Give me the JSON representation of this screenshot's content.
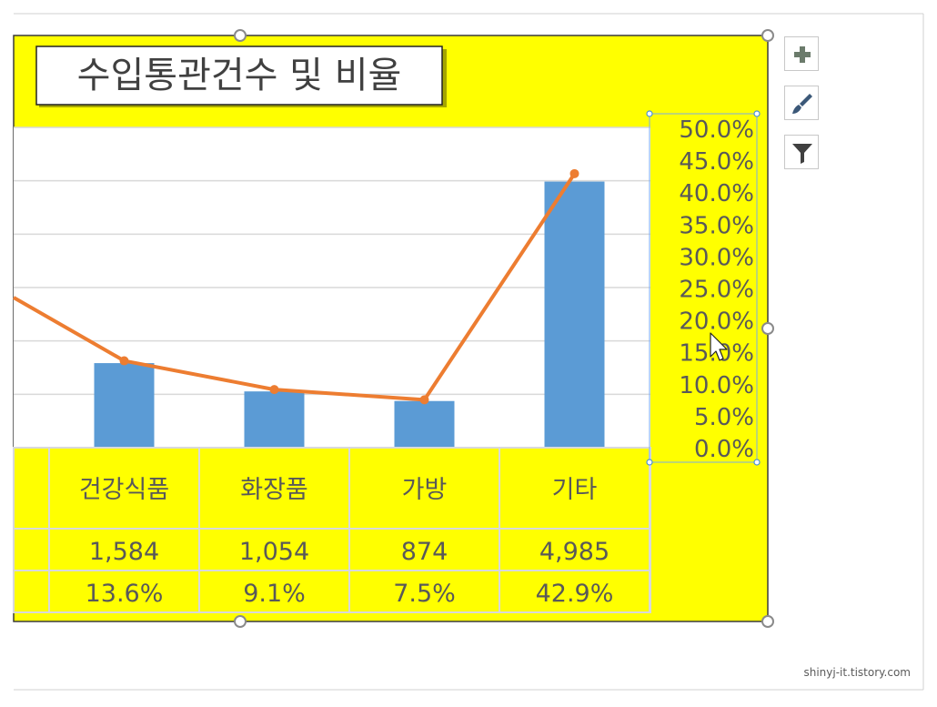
{
  "chart_data": {
    "type": "bar+line",
    "title": "수입통관건수 및 비율",
    "categories": [
      "건강식품",
      "화장품",
      "가방",
      "기타"
    ],
    "series": [
      {
        "type": "bar",
        "values": [
          1584,
          1054,
          874,
          4985
        ]
      },
      {
        "type": "line",
        "values": [
          13.6,
          9.1,
          7.5,
          42.9
        ]
      }
    ],
    "data_table": {
      "rows": [
        [
          "1,584",
          "1,054",
          "874",
          "4,985"
        ],
        [
          "13.6%",
          "9.1%",
          "7.5%",
          "42.9%"
        ]
      ]
    },
    "secondary_axis": {
      "ylim": [
        0,
        50
      ],
      "step": 5,
      "tick_labels": [
        "50.0%",
        "45.0%",
        "40.0%",
        "35.0%",
        "30.0%",
        "25.0%",
        "20.0%",
        "15.0%",
        "10.0%",
        "5.0%",
        "0.0%"
      ]
    },
    "primary_axis_ylim": [
      0,
      6000
    ],
    "grid": true,
    "colors": {
      "chart_area": "#ffff00",
      "plot_area": "#ffffff",
      "bar": "#5b9bd5",
      "line": "#ed7d31",
      "gridline": "#d9d9d9",
      "table_border": "#d9d9d9",
      "axis_text": "#595959",
      "selection": "#4a90d9"
    }
  },
  "side_buttons": [
    {
      "icon": "plus-icon"
    },
    {
      "icon": "brush-icon"
    },
    {
      "icon": "filter-icon"
    }
  ],
  "watermark": "shinyj-it.tistory.com"
}
